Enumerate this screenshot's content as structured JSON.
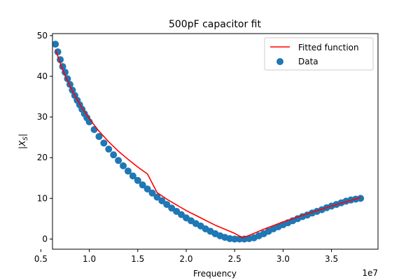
{
  "chart_data": {
    "type": "scatter",
    "title": "500pF capacitor fit",
    "xlabel": "Frequency",
    "ylabel": "|X",
    "ylabel_sub": "S",
    "ylabel_end": "|",
    "x_offset_label": "1e7",
    "xlim": [
      6200000,
      39800000
    ],
    "ylim": [
      -2.5,
      50.5
    ],
    "xticks": [
      5000000,
      10000000,
      15000000,
      20000000,
      25000000,
      30000000,
      35000000
    ],
    "xtick_labels": [
      "0.5",
      "1.0",
      "1.5",
      "2.0",
      "2.5",
      "3.0",
      "3.5"
    ],
    "yticks": [
      0,
      10,
      20,
      30,
      40,
      50
    ],
    "ytick_labels": [
      "0",
      "10",
      "20",
      "30",
      "40",
      "50"
    ],
    "grid": false,
    "legend_position": "top-right",
    "legend": [
      {
        "label": "Fitted function",
        "kind": "line",
        "color": "#ff0000"
      },
      {
        "label": "Data",
        "kind": "marker",
        "color": "#1f77b4"
      }
    ],
    "series": [
      {
        "name": "Data",
        "kind": "scatter",
        "color": "#1f77b4",
        "x": [
          6500000,
          6750000,
          7000000,
          7250000,
          7500000,
          7750000,
          8000000,
          8250000,
          8500000,
          8750000,
          9000000,
          9250000,
          9500000,
          9750000,
          10000000,
          10500000,
          11000000,
          11500000,
          12000000,
          12500000,
          13000000,
          13500000,
          14000000,
          14500000,
          15000000,
          15500000,
          16000000,
          16500000,
          17000000,
          17500000,
          18000000,
          18500000,
          19000000,
          19500000,
          20000000,
          20500000,
          21000000,
          21500000,
          22000000,
          22500000,
          23000000,
          23500000,
          24000000,
          24500000,
          25000000,
          25500000,
          26000000,
          26500000,
          27000000,
          27500000,
          28000000,
          28500000,
          29000000,
          29500000,
          30000000,
          30500000,
          31000000,
          31500000,
          32000000,
          32500000,
          33000000,
          33500000,
          34000000,
          34500000,
          35000000,
          35500000,
          36000000,
          36500000,
          37000000,
          37500000,
          38000000
        ],
        "y": [
          47.9,
          46.0,
          44.1,
          42.4,
          41.0,
          39.4,
          38.0,
          36.6,
          35.3,
          34.1,
          33.0,
          31.9,
          30.8,
          29.8,
          28.8,
          26.9,
          25.2,
          23.6,
          22.1,
          20.7,
          19.3,
          18.0,
          16.7,
          15.5,
          14.4,
          13.3,
          12.3,
          11.3,
          10.3,
          9.4,
          8.5,
          7.6,
          6.8,
          6.0,
          5.2,
          4.5,
          3.8,
          3.2,
          2.5,
          1.9,
          1.3,
          0.8,
          0.4,
          0.1,
          0.0,
          0.0,
          0.0,
          0.1,
          0.3,
          0.8,
          1.3,
          1.9,
          2.5,
          3.0,
          3.5,
          4.0,
          4.5,
          5.0,
          5.5,
          5.9,
          6.4,
          6.8,
          7.2,
          7.7,
          8.1,
          8.5,
          8.9,
          9.3,
          9.6,
          9.8,
          10.0
        ]
      },
      {
        "name": "Fitted function",
        "kind": "line",
        "color": "#ff0000",
        "x": [
          6500000,
          7000000,
          7500000,
          8000000,
          8500000,
          9000000,
          9500000,
          10000000,
          11000000,
          12000000,
          13000000,
          14000000,
          15000000,
          16000000,
          17000000,
          18000000,
          19000000,
          20000000,
          21000000,
          22000000,
          23000000,
          24000000,
          25000000,
          25800000,
          26500000,
          27000000,
          28000000,
          29000000,
          30000000,
          31000000,
          32000000,
          33000000,
          34000000,
          35000000,
          36000000,
          37000000,
          38000000
        ],
        "y": [
          46.6,
          43.2,
          40.2,
          37.6,
          35.3,
          33.2,
          31.3,
          29.6,
          26.5,
          23.9,
          21.6,
          19.6,
          17.7,
          16.0,
          11.4,
          9.8,
          8.4,
          7.0,
          5.8,
          4.6,
          3.4,
          2.4,
          1.4,
          0.3,
          0.9,
          1.4,
          2.4,
          3.3,
          4.2,
          5.0,
          5.8,
          6.6,
          7.3,
          8.1,
          8.8,
          9.5,
          10.2
        ]
      }
    ]
  }
}
